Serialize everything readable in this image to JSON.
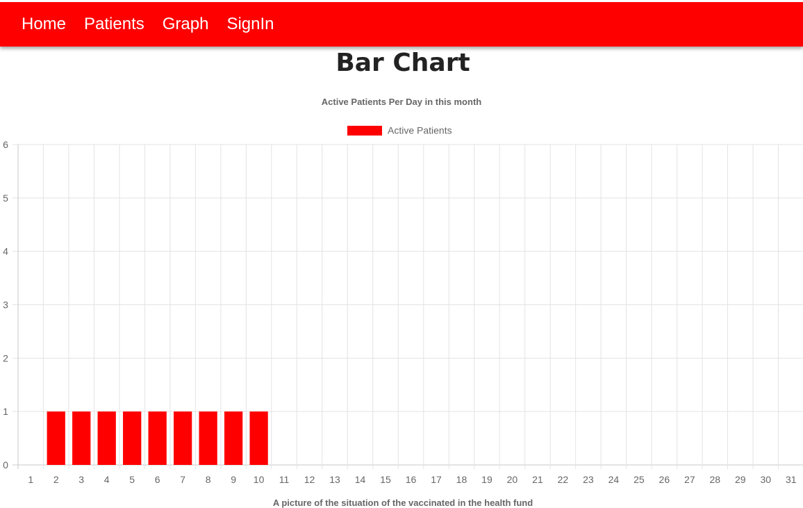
{
  "nav": {
    "items": [
      {
        "label": "Home"
      },
      {
        "label": "Patients"
      },
      {
        "label": "Graph"
      },
      {
        "label": "SignIn"
      }
    ]
  },
  "page": {
    "title": "Bar Chart",
    "caption": "A picture of the situation of the vaccinated in the health fund"
  },
  "colors": {
    "navbar": "#ff0000",
    "bar": "#ff0000"
  },
  "chart_data": {
    "type": "bar",
    "title": "Active Patients Per Day in this month",
    "legend_position": "top",
    "grid": true,
    "categories": [
      "1",
      "2",
      "3",
      "4",
      "5",
      "6",
      "7",
      "8",
      "9",
      "10",
      "11",
      "12",
      "13",
      "14",
      "15",
      "16",
      "17",
      "18",
      "19",
      "20",
      "21",
      "22",
      "23",
      "24",
      "25",
      "26",
      "27",
      "28",
      "29",
      "30",
      "31"
    ],
    "series": [
      {
        "name": "Active Patients",
        "color": "#ff0000",
        "values": [
          0,
          1,
          1,
          1,
          1,
          1,
          1,
          1,
          1,
          1,
          0,
          0,
          0,
          0,
          0,
          0,
          0,
          0,
          0,
          0,
          0,
          0,
          0,
          0,
          0,
          0,
          0,
          0,
          0,
          0,
          0
        ]
      }
    ],
    "ylim": [
      0,
      6
    ],
    "yticks": [
      "0",
      "1",
      "2",
      "3",
      "4",
      "5",
      "6"
    ]
  }
}
